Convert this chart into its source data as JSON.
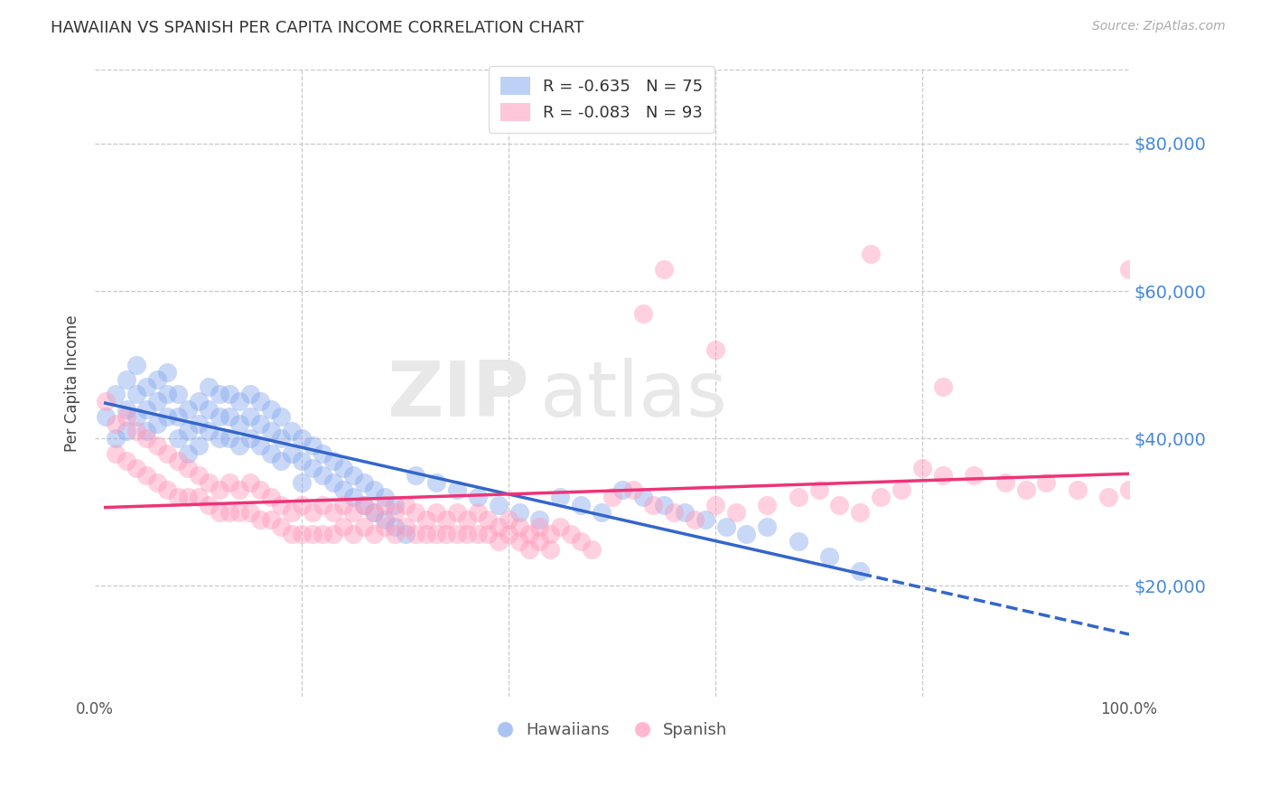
{
  "title": "HAWAIIAN VS SPANISH PER CAPITA INCOME CORRELATION CHART",
  "source": "Source: ZipAtlas.com",
  "ylabel": "Per Capita Income",
  "watermark_zip": "ZIP",
  "watermark_atlas": "atlas",
  "background_color": "#ffffff",
  "grid_color": "#c8c8c8",
  "hawaiians_color": "#88aaee",
  "spanish_color": "#ff99bb",
  "hawaiians_line_color": "#3366cc",
  "spanish_line_color": "#ee3377",
  "hawaiians_R": -0.635,
  "hawaiians_N": 75,
  "spanish_R": -0.083,
  "spanish_N": 93,
  "ytick_labels": [
    "$20,000",
    "$40,000",
    "$60,000",
    "$80,000"
  ],
  "ytick_values": [
    20000,
    40000,
    60000,
    80000
  ],
  "ytick_color": "#4488dd",
  "xlim": [
    0,
    100
  ],
  "ylim": [
    5000,
    90000
  ],
  "legend_R_color": "#cc0033",
  "legend_N_color": "#2255cc",
  "hawaiians_x": [
    1,
    2,
    2,
    3,
    3,
    3,
    4,
    4,
    4,
    5,
    5,
    5,
    6,
    6,
    6,
    7,
    7,
    7,
    8,
    8,
    8,
    9,
    9,
    9,
    10,
    10,
    10,
    11,
    11,
    11,
    12,
    12,
    12,
    13,
    13,
    13,
    14,
    14,
    14,
    15,
    15,
    15,
    16,
    16,
    16,
    17,
    17,
    17,
    18,
    18,
    18,
    19,
    19,
    20,
    20,
    20,
    21,
    21,
    22,
    22,
    23,
    23,
    24,
    24,
    25,
    25,
    26,
    26,
    27,
    27,
    28,
    28,
    29,
    29,
    30
  ],
  "hawaiians_y": [
    43000,
    46000,
    40000,
    48000,
    44000,
    41000,
    50000,
    46000,
    43000,
    47000,
    44000,
    41000,
    48000,
    45000,
    42000,
    49000,
    46000,
    43000,
    46000,
    43000,
    40000,
    44000,
    41000,
    38000,
    45000,
    42000,
    39000,
    47000,
    44000,
    41000,
    46000,
    43000,
    40000,
    46000,
    43000,
    40000,
    45000,
    42000,
    39000,
    46000,
    43000,
    40000,
    45000,
    42000,
    39000,
    44000,
    41000,
    38000,
    43000,
    40000,
    37000,
    41000,
    38000,
    40000,
    37000,
    34000,
    39000,
    36000,
    38000,
    35000,
    37000,
    34000,
    36000,
    33000,
    35000,
    32000,
    34000,
    31000,
    33000,
    30000,
    32000,
    29000,
    31000,
    28000,
    27000
  ],
  "hawaiians_x2": [
    31,
    33,
    35,
    37,
    39,
    41,
    43,
    45,
    47,
    49,
    51,
    53,
    55,
    57,
    59,
    61,
    63,
    65,
    68,
    71,
    74
  ],
  "hawaiians_y2": [
    35000,
    34000,
    33000,
    32000,
    31000,
    30000,
    29000,
    32000,
    31000,
    30000,
    33000,
    32000,
    31000,
    30000,
    29000,
    28000,
    27000,
    28000,
    26000,
    24000,
    22000
  ],
  "spanish_x": [
    1,
    2,
    2,
    3,
    3,
    4,
    4,
    5,
    5,
    6,
    6,
    7,
    7,
    8,
    8,
    9,
    9,
    10,
    10,
    11,
    11,
    12,
    12,
    13,
    13,
    14,
    14,
    15,
    15,
    16,
    16,
    17,
    17,
    18,
    18,
    19,
    19,
    20,
    20,
    21,
    21,
    22,
    22,
    23,
    23,
    24,
    24,
    25,
    25,
    26,
    26,
    27,
    27,
    28,
    28,
    29,
    29,
    30,
    30,
    31,
    31,
    32,
    32,
    33,
    33,
    34,
    34,
    35,
    35,
    36,
    36,
    37,
    37,
    38,
    38,
    39,
    39,
    40,
    40,
    41,
    41,
    42,
    42,
    43,
    43,
    44,
    44,
    45,
    46,
    47,
    48
  ],
  "spanish_y": [
    45000,
    42000,
    38000,
    43000,
    37000,
    41000,
    36000,
    40000,
    35000,
    39000,
    34000,
    38000,
    33000,
    37000,
    32000,
    36000,
    32000,
    35000,
    32000,
    34000,
    31000,
    33000,
    30000,
    34000,
    30000,
    33000,
    30000,
    34000,
    30000,
    33000,
    29000,
    32000,
    29000,
    31000,
    28000,
    30000,
    27000,
    31000,
    27000,
    30000,
    27000,
    31000,
    27000,
    30000,
    27000,
    31000,
    28000,
    30000,
    27000,
    31000,
    28000,
    30000,
    27000,
    31000,
    28000,
    30000,
    27000,
    31000,
    28000,
    30000,
    27000,
    29000,
    27000,
    30000,
    27000,
    29000,
    27000,
    30000,
    27000,
    29000,
    27000,
    30000,
    27000,
    29000,
    27000,
    28000,
    26000,
    29000,
    27000,
    28000,
    26000,
    27000,
    25000,
    28000,
    26000,
    27000,
    25000,
    28000,
    27000,
    26000,
    25000
  ],
  "spanish_x2": [
    50,
    52,
    54,
    56,
    58,
    60,
    62,
    65,
    68,
    70,
    72,
    74,
    76,
    78,
    80,
    82,
    85,
    88,
    90,
    92,
    95,
    98,
    100
  ],
  "spanish_y2": [
    32000,
    33000,
    31000,
    30000,
    29000,
    31000,
    30000,
    31000,
    32000,
    33000,
    31000,
    30000,
    32000,
    33000,
    36000,
    35000,
    35000,
    34000,
    33000,
    34000,
    33000,
    32000,
    33000
  ],
  "spanish_outliers_x": [
    53,
    55,
    60,
    75,
    82,
    100
  ],
  "spanish_outliers_y": [
    57000,
    63000,
    52000,
    65000,
    47000,
    63000
  ]
}
